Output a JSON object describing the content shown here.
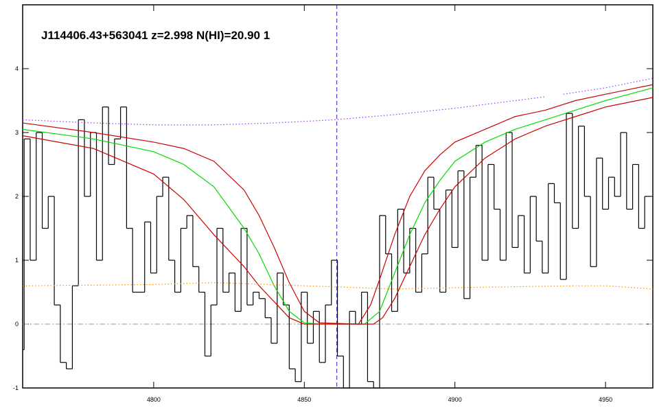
{
  "chart_data": {
    "type": "line",
    "title": "J114406.43+563041 z=2.998 N(HI)=20.90 1",
    "xlim": [
      4756.5,
      4965.7
    ],
    "ylim": [
      -1,
      5
    ],
    "xticks": [
      4800,
      4850,
      4900,
      4950
    ],
    "yticks": [
      -1,
      0,
      1,
      2,
      3,
      4
    ],
    "hline": 0,
    "vline": 4860.8,
    "series": [
      {
        "color": "#000000",
        "style": "step",
        "x": [
          4756,
          4758,
          4760,
          4762,
          4764,
          4766,
          4768,
          4770,
          4772,
          4774,
          4776,
          4778,
          4780,
          4782,
          4784,
          4786,
          4788,
          4790,
          4792,
          4794,
          4796,
          4798,
          4800,
          4802,
          4804,
          4806,
          4808,
          4810,
          4812,
          4814,
          4816,
          4818,
          4820,
          4822,
          4824,
          4826,
          4828,
          4830,
          4832,
          4834,
          4836,
          4838,
          4840,
          4842,
          4844,
          4846,
          4848,
          4850,
          4852,
          4854,
          4856,
          4858,
          4860,
          4862,
          4864,
          4866,
          4868,
          4870,
          4872,
          4874,
          4876,
          4878,
          4880,
          4882,
          4884,
          4886,
          4888,
          4890,
          4892,
          4894,
          4896,
          4898,
          4900,
          4902,
          4904,
          4906,
          4908,
          4910,
          4912,
          4914,
          4916,
          4918,
          4920,
          4922,
          4924,
          4926,
          4928,
          4930,
          4932,
          4934,
          4936,
          4938,
          4940,
          4942,
          4944,
          4946,
          4948,
          4950,
          4952,
          4954,
          4956,
          4958,
          4960,
          4962,
          4964
        ],
        "values": [
          -0.4,
          2.9,
          1.0,
          3.0,
          1.5,
          2.0,
          0.3,
          -0.6,
          -0.7,
          0.6,
          3.2,
          2.0,
          3.0,
          1.0,
          3.4,
          2.5,
          2.9,
          3.4,
          1.5,
          0.5,
          0.5,
          1.6,
          0.8,
          2.0,
          2.3,
          1.0,
          0.5,
          1.5,
          1.7,
          0.9,
          0.5,
          -0.5,
          0.3,
          1.5,
          0.5,
          0.8,
          0.2,
          1.5,
          0.3,
          0.5,
          0.4,
          0.1,
          -0.3,
          0.8,
          0.3,
          -0.7,
          -0.9,
          0.5,
          -0.3,
          0.2,
          -0.6,
          0.3,
          1.0,
          -0.5,
          -1.0,
          0.2,
          0.0,
          0.5,
          -0.9,
          -1.0,
          1.7,
          1.1,
          0.2,
          1.8,
          0.8,
          1.5,
          0.5,
          1.1,
          2.3,
          1.8,
          0.5,
          2.1,
          1.2,
          2.4,
          0.4,
          2.3,
          2.8,
          1.0,
          2.5,
          1.8,
          1.0,
          3.0,
          1.2,
          1.7,
          0.8,
          2.0,
          1.3,
          0.8,
          2.2,
          1.9,
          0.7,
          3.3,
          1.5,
          3.1,
          2.0,
          0.9,
          2.6,
          1.8,
          2.3,
          2.0,
          3.0,
          1.8,
          2.5,
          1.5,
          2.0
        ]
      },
      {
        "color": "#00dd00",
        "style": "solid",
        "x": [
          4756.5,
          4780,
          4800,
          4810,
          4820,
          4830,
          4835,
          4840,
          4845,
          4850,
          4855,
          4870,
          4875,
          4880,
          4885,
          4890,
          4895,
          4900,
          4910,
          4920,
          4930,
          4940,
          4950,
          4965.7
        ],
        "values": [
          3.05,
          2.9,
          2.7,
          2.5,
          2.15,
          1.5,
          1.1,
          0.6,
          0.2,
          0.02,
          0,
          0,
          0.2,
          0.8,
          1.4,
          1.9,
          2.25,
          2.55,
          2.85,
          3.05,
          3.2,
          3.35,
          3.5,
          3.7
        ]
      },
      {
        "color": "#cc0000",
        "style": "solid",
        "x": [
          4756.5,
          4780,
          4800,
          4810,
          4820,
          4830,
          4835,
          4840,
          4845,
          4850,
          4855,
          4868,
          4872,
          4875,
          4880,
          4885,
          4890,
          4895,
          4900,
          4910,
          4920,
          4930,
          4940,
          4950,
          4965.7
        ],
        "values": [
          3.15,
          3.0,
          2.85,
          2.75,
          2.55,
          2.1,
          1.7,
          1.2,
          0.65,
          0.2,
          0.02,
          0,
          0.3,
          0.7,
          1.4,
          2.0,
          2.4,
          2.65,
          2.85,
          3.05,
          3.25,
          3.35,
          3.5,
          3.6,
          3.75
        ]
      },
      {
        "color": "#cc0000",
        "style": "solid",
        "x": [
          4756.5,
          4780,
          4800,
          4810,
          4820,
          4830,
          4835,
          4840,
          4845,
          4850,
          4873,
          4876,
          4880,
          4885,
          4890,
          4895,
          4900,
          4910,
          4920,
          4930,
          4940,
          4950,
          4965.7
        ],
        "values": [
          2.95,
          2.75,
          2.35,
          1.95,
          1.4,
          0.9,
          0.6,
          0.35,
          0.1,
          0,
          0,
          0.1,
          0.4,
          0.9,
          1.4,
          1.8,
          2.15,
          2.6,
          2.9,
          3.1,
          3.25,
          3.4,
          3.55
        ]
      },
      {
        "color": "#9b30ff",
        "style": "dotted",
        "x": [
          4756.5,
          4780,
          4800,
          4820,
          4840,
          4860,
          4880,
          4900,
          4920,
          4930,
          4932,
          4936,
          4950,
          4965.7
        ],
        "values": [
          3.2,
          3.15,
          3.12,
          3.12,
          3.15,
          3.2,
          3.28,
          3.38,
          3.5,
          3.56,
          null,
          3.6,
          3.7,
          3.85
        ]
      },
      {
        "color": "#ff8c00",
        "style": "dotted",
        "x": [
          4756.5,
          4800,
          4820,
          4850,
          4880,
          4900,
          4940,
          4950,
          4965.7
        ],
        "values": [
          0.6,
          0.62,
          0.65,
          0.6,
          0.55,
          0.57,
          0.6,
          0.6,
          0.55
        ]
      }
    ]
  }
}
